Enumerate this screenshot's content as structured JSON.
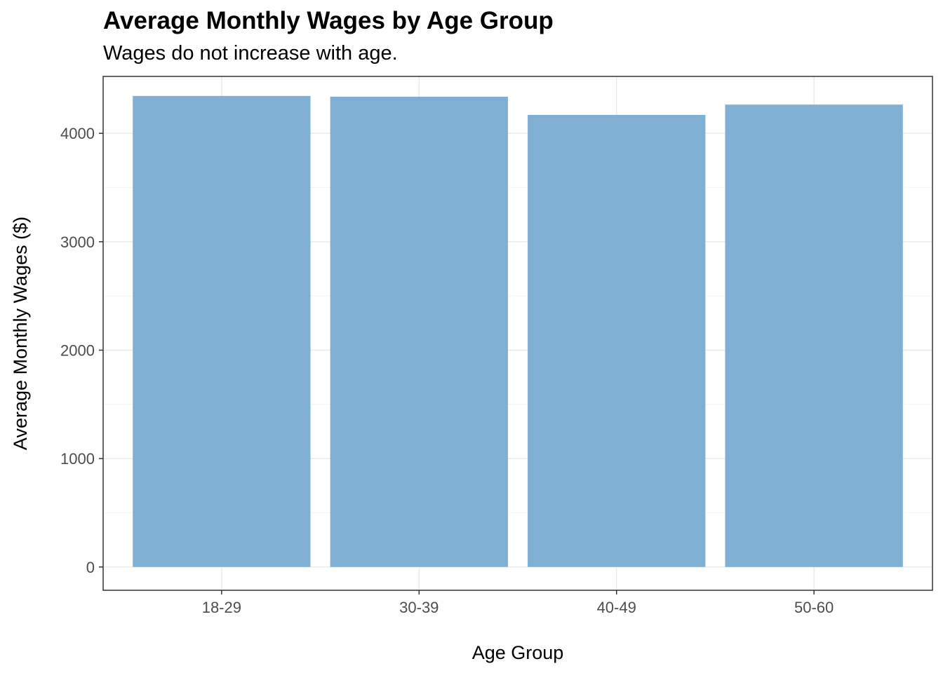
{
  "chart_data": {
    "type": "bar",
    "title": "Average Monthly Wages by Age Group",
    "subtitle": "Wages do not increase with age.",
    "xlabel": "Age Group",
    "ylabel": "Average Monthly Wages ($)",
    "categories": [
      "18-29",
      "30-39",
      "40-49",
      "50-60"
    ],
    "values": [
      4345,
      4338,
      4170,
      4265
    ],
    "ylim": [
      -215,
      4525
    ],
    "yticks": [
      0,
      1000,
      2000,
      3000,
      4000
    ],
    "grid": true,
    "bar_color": "#7fb0d3",
    "panel_border_color": "#333333",
    "grid_major_color": "#ebebeb",
    "grid_minor_color": "#f4f4f4"
  }
}
